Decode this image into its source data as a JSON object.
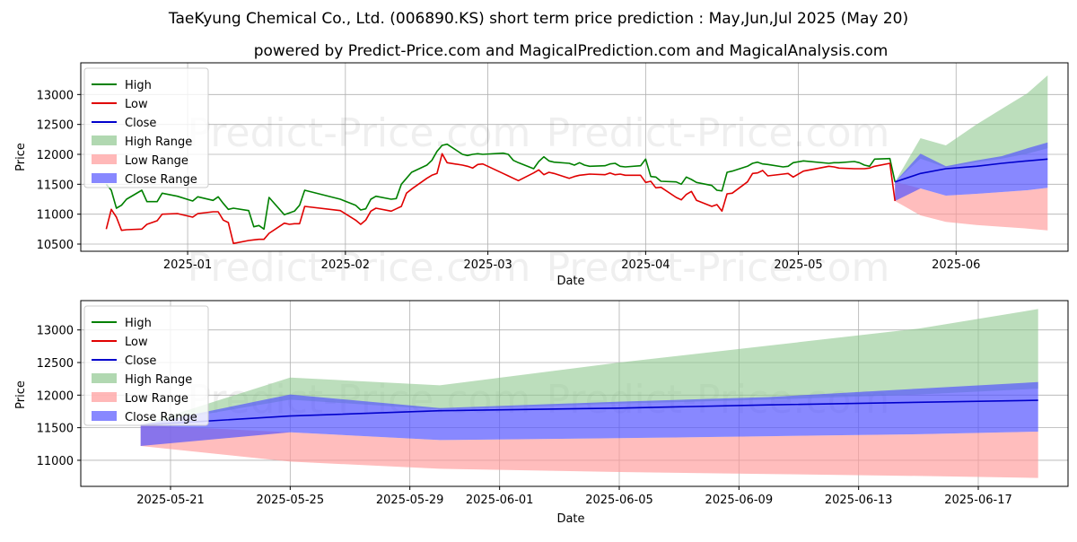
{
  "title": "TaeKyung Chemical Co., Ltd. (006890.KS) short term price prediction : May,Jun,Jul 2025 (May 20)",
  "subtitle": "powered by Predict-Price.com and MagicalPrediction.com and MagicalAnalysis.com",
  "watermark": "Predict-Price.com",
  "colors": {
    "high": "#008000",
    "low": "#e00000",
    "close": "#0000cc",
    "high_range": "#90c890",
    "low_range": "#ff9a9a",
    "close_range": "#5555ff",
    "grid": "#b0b0b0"
  },
  "chart_data": [
    {
      "type": "line",
      "xlabel": "Date",
      "ylabel": "Price",
      "x_ticks": [
        "2025-01",
        "2025-02",
        "2025-03",
        "2025-04",
        "2025-05",
        "2025-06"
      ],
      "y_ticks": [
        10500,
        11000,
        11500,
        12000,
        12500,
        13000
      ],
      "xlim": [
        "2024-12-11",
        "2025-06-23"
      ],
      "ylim": [
        10380,
        13530
      ],
      "grid": true,
      "legend_position": "top-left",
      "legend": [
        "High",
        "Low",
        "Close",
        "High Range",
        "Low Range",
        "Close Range"
      ],
      "series": [
        {
          "name": "High",
          "x": [
            "2024-12-16",
            "2024-12-17",
            "2024-12-18",
            "2024-12-19",
            "2024-12-20",
            "2024-12-23",
            "2024-12-24",
            "2024-12-26",
            "2024-12-27",
            "2024-12-30",
            "2025-01-02",
            "2025-01-03",
            "2025-01-06",
            "2025-01-07",
            "2025-01-08",
            "2025-01-09",
            "2025-01-10",
            "2025-01-13",
            "2025-01-14",
            "2025-01-15",
            "2025-01-16",
            "2025-01-17",
            "2025-01-20",
            "2025-01-21",
            "2025-01-22",
            "2025-01-23",
            "2025-01-24",
            "2025-01-31",
            "2025-02-03",
            "2025-02-04",
            "2025-02-05",
            "2025-02-06",
            "2025-02-07",
            "2025-02-10",
            "2025-02-11",
            "2025-02-12",
            "2025-02-13",
            "2025-02-14",
            "2025-02-17",
            "2025-02-18",
            "2025-02-19",
            "2025-02-20",
            "2025-02-21",
            "2025-02-24",
            "2025-02-25",
            "2025-02-26",
            "2025-02-27",
            "2025-02-28",
            "2025-03-04",
            "2025-03-05",
            "2025-03-06",
            "2025-03-07",
            "2025-03-10",
            "2025-03-11",
            "2025-03-12",
            "2025-03-13",
            "2025-03-14",
            "2025-03-17",
            "2025-03-18",
            "2025-03-19",
            "2025-03-20",
            "2025-03-21",
            "2025-03-24",
            "2025-03-25",
            "2025-03-26",
            "2025-03-27",
            "2025-03-28",
            "2025-03-31",
            "2025-04-01",
            "2025-04-02",
            "2025-04-03",
            "2025-04-04",
            "2025-04-07",
            "2025-04-08",
            "2025-04-09",
            "2025-04-10",
            "2025-04-11",
            "2025-04-14",
            "2025-04-15",
            "2025-04-16",
            "2025-04-17",
            "2025-04-18",
            "2025-04-21",
            "2025-04-22",
            "2025-04-23",
            "2025-04-24",
            "2025-04-25",
            "2025-04-28",
            "2025-04-29",
            "2025-04-30",
            "2025-05-02",
            "2025-05-07",
            "2025-05-08",
            "2025-05-09",
            "2025-05-12",
            "2025-05-13",
            "2025-05-14",
            "2025-05-15",
            "2025-05-16",
            "2025-05-19",
            "2025-05-20"
          ],
          "values": [
            11500,
            11400,
            11100,
            11150,
            11250,
            11400,
            11210,
            11210,
            11350,
            11300,
            11220,
            11290,
            11230,
            11290,
            11180,
            11080,
            11100,
            11060,
            10790,
            10810,
            10750,
            11280,
            10990,
            11020,
            11050,
            11150,
            11400,
            11250,
            11150,
            11070,
            11090,
            11250,
            11300,
            11250,
            11260,
            11500,
            11600,
            11700,
            11820,
            11900,
            12050,
            12150,
            12170,
            12000,
            11980,
            12000,
            12010,
            12000,
            12020,
            12000,
            11900,
            11860,
            11760,
            11880,
            11960,
            11890,
            11870,
            11850,
            11820,
            11860,
            11820,
            11800,
            11810,
            11840,
            11850,
            11800,
            11790,
            11810,
            11920,
            11630,
            11620,
            11550,
            11540,
            11500,
            11620,
            11580,
            11530,
            11480,
            11400,
            11390,
            11700,
            11720,
            11800,
            11850,
            11870,
            11840,
            11830,
            11790,
            11800,
            11860,
            11890,
            11850,
            11860,
            11860,
            11880,
            11860,
            11820,
            11800,
            11920,
            11930,
            11540
          ]
        },
        {
          "name": "Low",
          "x": [
            "2024-12-16",
            "2024-12-17",
            "2024-12-18",
            "2024-12-19",
            "2024-12-20",
            "2024-12-23",
            "2024-12-24",
            "2024-12-26",
            "2024-12-27",
            "2024-12-30",
            "2025-01-02",
            "2025-01-03",
            "2025-01-06",
            "2025-01-07",
            "2025-01-08",
            "2025-01-09",
            "2025-01-10",
            "2025-01-13",
            "2025-01-14",
            "2025-01-15",
            "2025-01-16",
            "2025-01-17",
            "2025-01-20",
            "2025-01-21",
            "2025-01-22",
            "2025-01-23",
            "2025-01-24",
            "2025-01-31",
            "2025-02-03",
            "2025-02-04",
            "2025-02-05",
            "2025-02-06",
            "2025-02-07",
            "2025-02-10",
            "2025-02-11",
            "2025-02-12",
            "2025-02-13",
            "2025-02-14",
            "2025-02-17",
            "2025-02-18",
            "2025-02-19",
            "2025-02-20",
            "2025-02-21",
            "2025-02-24",
            "2025-02-25",
            "2025-02-26",
            "2025-02-27",
            "2025-02-28",
            "2025-03-04",
            "2025-03-05",
            "2025-03-06",
            "2025-03-07",
            "2025-03-10",
            "2025-03-11",
            "2025-03-12",
            "2025-03-13",
            "2025-03-14",
            "2025-03-17",
            "2025-03-18",
            "2025-03-19",
            "2025-03-20",
            "2025-03-21",
            "2025-03-24",
            "2025-03-25",
            "2025-03-26",
            "2025-03-27",
            "2025-03-28",
            "2025-03-31",
            "2025-04-01",
            "2025-04-02",
            "2025-04-03",
            "2025-04-04",
            "2025-04-07",
            "2025-04-08",
            "2025-04-09",
            "2025-04-10",
            "2025-04-11",
            "2025-04-14",
            "2025-04-15",
            "2025-04-16",
            "2025-04-17",
            "2025-04-18",
            "2025-04-21",
            "2025-04-22",
            "2025-04-23",
            "2025-04-24",
            "2025-04-25",
            "2025-04-28",
            "2025-04-29",
            "2025-04-30",
            "2025-05-02",
            "2025-05-07",
            "2025-05-08",
            "2025-05-09",
            "2025-05-12",
            "2025-05-13",
            "2025-05-14",
            "2025-05-15",
            "2025-05-16",
            "2025-05-19",
            "2025-05-20"
          ],
          "values": [
            10750,
            11080,
            10950,
            10730,
            10740,
            10750,
            10830,
            10890,
            11000,
            11010,
            10950,
            11010,
            11040,
            11040,
            10900,
            10860,
            10510,
            10560,
            10570,
            10580,
            10580,
            10680,
            10850,
            10830,
            10840,
            10840,
            11130,
            11060,
            10900,
            10830,
            10900,
            11050,
            11100,
            11050,
            11090,
            11130,
            11350,
            11420,
            11600,
            11650,
            11680,
            12010,
            11860,
            11820,
            11800,
            11770,
            11830,
            11840,
            11680,
            11640,
            11600,
            11560,
            11690,
            11740,
            11660,
            11700,
            11680,
            11600,
            11630,
            11650,
            11660,
            11670,
            11660,
            11690,
            11660,
            11670,
            11650,
            11650,
            11530,
            11550,
            11440,
            11450,
            11280,
            11240,
            11330,
            11380,
            11230,
            11130,
            11160,
            11050,
            11340,
            11350,
            11540,
            11680,
            11690,
            11730,
            11640,
            11670,
            11680,
            11620,
            11720,
            11800,
            11790,
            11770,
            11760,
            11760,
            11760,
            11770,
            11800,
            11850,
            11220
          ]
        }
      ],
      "forecast": {
        "x": [
          "2025-05-20",
          "2025-05-25",
          "2025-05-30",
          "2025-06-05",
          "2025-06-10",
          "2025-06-15",
          "2025-06-19"
        ],
        "close": [
          11540,
          11680,
          11760,
          11800,
          11850,
          11890,
          11920
        ],
        "high_range_upper": [
          11540,
          12270,
          12150,
          12500,
          12760,
          13020,
          13320
        ],
        "high_range_lower": [
          11540,
          11930,
          11780,
          11870,
          11930,
          12010,
          12100
        ],
        "low_range_upper": [
          11540,
          11430,
          11310,
          11340,
          11370,
          11400,
          11440
        ],
        "low_range_lower": [
          11220,
          10980,
          10870,
          10820,
          10790,
          10760,
          10730
        ],
        "close_range_upper": [
          11540,
          12010,
          11800,
          11900,
          11970,
          12100,
          12200
        ],
        "close_range_lower": [
          11220,
          11430,
          11310,
          11340,
          11370,
          11400,
          11440
        ]
      }
    },
    {
      "type": "line",
      "xlabel": "Date",
      "ylabel": "Price",
      "x_ticks": [
        "2025-05-21",
        "2025-05-25",
        "2025-05-29",
        "2025-06-01",
        "2025-06-05",
        "2025-06-09",
        "2025-06-13",
        "2025-06-17"
      ],
      "y_ticks": [
        11000,
        11500,
        12000,
        12500,
        13000
      ],
      "xlim": [
        "2025-05-18",
        "2025-06-20"
      ],
      "ylim": [
        10600,
        13450
      ],
      "grid": true,
      "legend_position": "top-left",
      "legend": [
        "High",
        "Low",
        "Close",
        "High Range",
        "Low Range",
        "Close Range"
      ]
    }
  ]
}
